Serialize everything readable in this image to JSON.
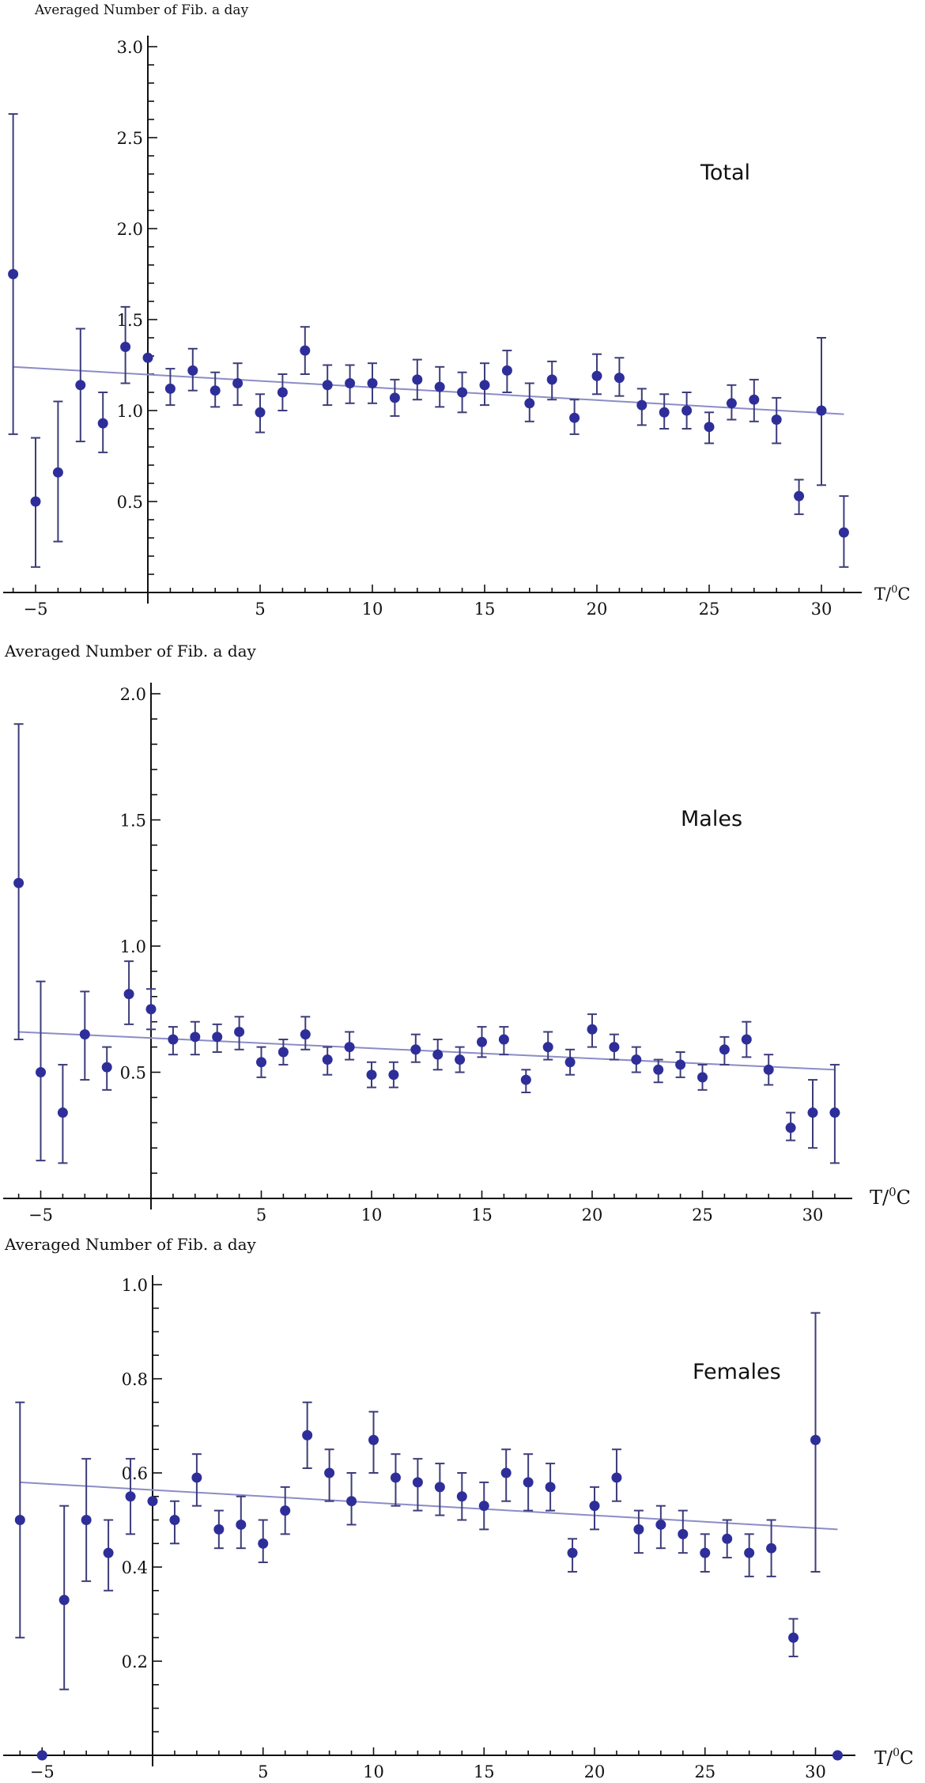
{
  "colors": {
    "point": "#2e2e9a",
    "errorbar": "#3c3c7a",
    "trend": "#8c8cc8",
    "axis": "#111111"
  },
  "chart_data": [
    {
      "type": "scatter",
      "title": "Total",
      "ylabel": "Averaged Number of Fib. a day",
      "xlabel": "T/⁰C",
      "xlabel_main": "T/",
      "xlabel_sup": "0",
      "xlabel_tail": "C",
      "xlim": [
        -6,
        31
      ],
      "ylim": [
        0,
        3.0
      ],
      "x_ticks": [
        -5,
        5,
        10,
        15,
        20,
        25,
        30
      ],
      "x_tick_labels": [
        "−5",
        "5",
        "10",
        "15",
        "20",
        "25",
        "30"
      ],
      "y_ticks": [
        0.5,
        1.0,
        1.5,
        2.0,
        2.5,
        3.0
      ],
      "y_tick_labels": [
        "0.5",
        "1.0",
        "1.5",
        "2.0",
        "2.5",
        "3.0"
      ],
      "y_minor_step": 0.1,
      "trend": {
        "x": [
          -6,
          31
        ],
        "y": [
          1.24,
          0.98
        ]
      },
      "x": [
        -6,
        -5,
        -4,
        -3,
        -2,
        -1,
        0,
        1,
        2,
        3,
        4,
        5,
        6,
        7,
        8,
        9,
        10,
        11,
        12,
        13,
        14,
        15,
        16,
        17,
        18,
        19,
        20,
        21,
        22,
        23,
        24,
        25,
        26,
        27,
        28,
        29,
        30,
        31
      ],
      "y": [
        1.75,
        0.5,
        0.66,
        1.14,
        0.93,
        1.35,
        1.29,
        1.12,
        1.22,
        1.11,
        1.15,
        0.99,
        1.1,
        1.33,
        1.14,
        1.15,
        1.15,
        1.07,
        1.17,
        1.13,
        1.1,
        1.14,
        1.22,
        1.04,
        1.17,
        0.96,
        1.19,
        1.18,
        1.03,
        0.99,
        1.0,
        0.91,
        1.04,
        1.06,
        0.95,
        0.53,
        1.0,
        0.33
      ],
      "y_low": [
        0.87,
        0.14,
        0.28,
        0.83,
        0.77,
        1.15,
        null,
        1.03,
        1.11,
        1.02,
        1.03,
        0.88,
        1.0,
        1.2,
        1.03,
        1.04,
        1.04,
        0.97,
        1.06,
        1.02,
        0.99,
        1.03,
        1.1,
        0.94,
        1.06,
        0.87,
        1.09,
        1.08,
        0.92,
        0.9,
        0.9,
        0.82,
        0.95,
        0.94,
        0.82,
        0.43,
        0.59,
        0.14
      ],
      "y_high": [
        2.63,
        0.85,
        1.05,
        1.45,
        1.1,
        1.57,
        null,
        1.23,
        1.34,
        1.21,
        1.26,
        1.09,
        1.2,
        1.46,
        1.25,
        1.25,
        1.26,
        1.17,
        1.28,
        1.24,
        1.21,
        1.26,
        1.33,
        1.15,
        1.27,
        1.06,
        1.31,
        1.29,
        1.12,
        1.09,
        1.1,
        0.99,
        1.14,
        1.17,
        1.07,
        0.62,
        1.4,
        0.53
      ]
    },
    {
      "type": "scatter",
      "title": "Males",
      "ylabel": "Averaged Number of Fib. a day",
      "xlabel": "T/⁰C",
      "xlabel_main": "T/",
      "xlabel_sup": "0",
      "xlabel_tail": "C",
      "xlim": [
        -6,
        31
      ],
      "ylim": [
        0,
        2.0
      ],
      "x_ticks": [
        -5,
        5,
        10,
        15,
        20,
        25,
        30
      ],
      "x_tick_labels": [
        "−5",
        "5",
        "10",
        "15",
        "20",
        "25",
        "30"
      ],
      "y_ticks": [
        0.5,
        1.0,
        1.5,
        2.0
      ],
      "y_tick_labels": [
        "0.5",
        "1.0",
        "1.5",
        "2.0"
      ],
      "y_minor_step": 0.1,
      "trend": {
        "x": [
          -6,
          31
        ],
        "y": [
          0.66,
          0.51
        ]
      },
      "x": [
        -6,
        -5,
        -4,
        -3,
        -2,
        -1,
        0,
        1,
        2,
        3,
        4,
        5,
        6,
        7,
        8,
        9,
        10,
        11,
        12,
        13,
        14,
        15,
        16,
        17,
        18,
        19,
        20,
        21,
        22,
        23,
        24,
        25,
        26,
        27,
        28,
        29,
        30,
        31
      ],
      "y": [
        1.25,
        0.5,
        0.34,
        0.65,
        0.52,
        0.81,
        0.75,
        0.63,
        0.64,
        0.64,
        0.66,
        0.54,
        0.58,
        0.65,
        0.55,
        0.6,
        0.49,
        0.49,
        0.59,
        0.57,
        0.55,
        0.62,
        0.63,
        0.47,
        0.6,
        0.54,
        0.67,
        0.6,
        0.55,
        0.51,
        0.53,
        0.48,
        0.59,
        0.63,
        0.51,
        0.28,
        0.34,
        0.34
      ],
      "y_low": [
        0.63,
        0.15,
        0.14,
        0.47,
        0.43,
        0.69,
        0.67,
        0.57,
        0.57,
        0.58,
        0.59,
        0.48,
        0.53,
        0.59,
        0.49,
        0.55,
        0.44,
        0.44,
        0.54,
        0.51,
        0.5,
        0.56,
        0.57,
        0.42,
        0.55,
        0.49,
        0.6,
        0.55,
        0.5,
        0.46,
        0.48,
        0.43,
        0.53,
        0.56,
        0.45,
        0.23,
        0.2,
        0.14
      ],
      "y_high": [
        1.88,
        0.86,
        0.53,
        0.82,
        0.6,
        0.94,
        0.83,
        0.68,
        0.7,
        0.69,
        0.72,
        0.6,
        0.63,
        0.72,
        0.6,
        0.66,
        0.54,
        0.54,
        0.65,
        0.63,
        0.6,
        0.68,
        0.68,
        0.51,
        0.66,
        0.59,
        0.73,
        0.65,
        0.6,
        0.55,
        0.58,
        0.53,
        0.64,
        0.7,
        0.57,
        0.34,
        0.47,
        0.53
      ]
    },
    {
      "type": "scatter",
      "title": "Females",
      "ylabel": "Averaged Number of Fib. a day",
      "xlabel": "T/⁰C",
      "xlabel_main": "T/",
      "xlabel_sup": "0",
      "xlabel_tail": "C",
      "xlim": [
        -6,
        31
      ],
      "ylim": [
        0,
        1.0
      ],
      "x_ticks": [
        -5,
        5,
        10,
        15,
        20,
        25,
        30
      ],
      "x_tick_labels": [
        "−5",
        "5",
        "10",
        "15",
        "20",
        "25",
        "30"
      ],
      "y_ticks": [
        0.2,
        0.4,
        0.6,
        0.8,
        1.0
      ],
      "y_tick_labels": [
        "0.2",
        "0.4",
        "0.6",
        "0.8",
        "1.0"
      ],
      "y_minor_step": 0.05,
      "trend": {
        "x": [
          -6,
          31
        ],
        "y": [
          0.58,
          0.48
        ]
      },
      "x": [
        -6,
        -5,
        -4,
        -3,
        -2,
        -1,
        0,
        1,
        2,
        3,
        4,
        5,
        6,
        7,
        8,
        9,
        10,
        11,
        12,
        13,
        14,
        15,
        16,
        17,
        18,
        19,
        20,
        21,
        22,
        23,
        24,
        25,
        26,
        27,
        28,
        29,
        30,
        31
      ],
      "y": [
        0.5,
        0.0,
        0.33,
        0.5,
        0.43,
        0.55,
        0.54,
        0.5,
        0.59,
        0.48,
        0.49,
        0.45,
        0.52,
        0.68,
        0.6,
        0.54,
        0.67,
        0.59,
        0.58,
        0.57,
        0.55,
        0.53,
        0.6,
        0.58,
        0.57,
        0.43,
        0.53,
        0.59,
        0.48,
        0.49,
        0.47,
        0.43,
        0.46,
        0.43,
        0.44,
        0.25,
        0.67,
        0.0
      ],
      "y_low": [
        0.25,
        null,
        0.14,
        0.37,
        0.35,
        0.47,
        null,
        0.45,
        0.53,
        0.44,
        0.44,
        0.41,
        0.47,
        0.61,
        0.54,
        0.49,
        0.6,
        0.53,
        0.52,
        0.51,
        0.5,
        0.48,
        0.54,
        0.52,
        0.52,
        0.39,
        0.48,
        0.54,
        0.43,
        0.44,
        0.43,
        0.39,
        0.42,
        0.38,
        0.38,
        0.21,
        0.39,
        null
      ],
      "y_high": [
        0.75,
        null,
        0.53,
        0.63,
        0.5,
        0.63,
        null,
        0.54,
        0.64,
        0.52,
        0.55,
        0.5,
        0.57,
        0.75,
        0.65,
        0.6,
        0.73,
        0.64,
        0.63,
        0.62,
        0.6,
        0.58,
        0.65,
        0.64,
        0.62,
        0.46,
        0.57,
        0.65,
        0.52,
        0.53,
        0.52,
        0.47,
        0.5,
        0.47,
        0.5,
        0.29,
        0.94,
        null
      ]
    }
  ]
}
